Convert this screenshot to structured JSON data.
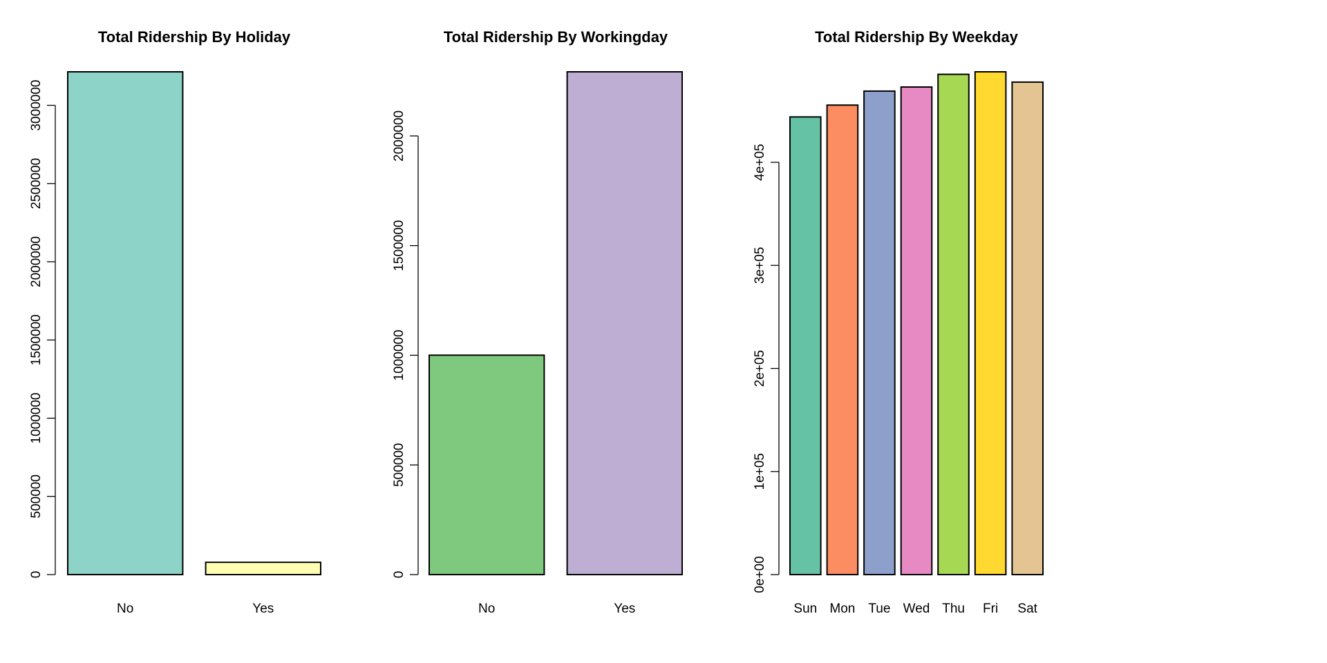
{
  "chart_data": [
    {
      "type": "bar",
      "title": "Total Ridership By Holiday",
      "xlabel": "",
      "ylabel": "",
      "categories": [
        "No",
        "Yes"
      ],
      "values": [
        3214244,
        78435
      ],
      "colors": [
        "#8DD3C7",
        "#FFFFB3"
      ],
      "ylim": [
        0,
        3214244
      ],
      "yticks": [
        0,
        500000,
        1000000,
        1500000,
        2000000,
        2500000,
        3000000
      ],
      "ytick_labels": [
        "0",
        "500000",
        "1000000",
        "1500000",
        "2000000",
        "2500000",
        "3000000"
      ],
      "grid": false,
      "legend": "none"
    },
    {
      "type": "bar",
      "title": "Total Ridership By Workingday",
      "xlabel": "",
      "ylabel": "",
      "categories": [
        "No",
        "Yes"
      ],
      "values": [
        1000269,
        2292410
      ],
      "colors": [
        "#7FC97F",
        "#BEAED4"
      ],
      "ylim": [
        0,
        2292410
      ],
      "yticks": [
        0,
        500000,
        1000000,
        1500000,
        2000000
      ],
      "ytick_labels": [
        "0",
        "500000",
        "1000000",
        "1500000",
        "2000000"
      ],
      "grid": false,
      "legend": "none"
    },
    {
      "type": "bar",
      "title": "Total Ridership By Weekday",
      "xlabel": "",
      "ylabel": "",
      "categories": [
        "Sun",
        "Mon",
        "Tue",
        "Wed",
        "Thu",
        "Fri",
        "Sat"
      ],
      "values": [
        444027,
        455503,
        469109,
        473048,
        485395,
        487790,
        477807
      ],
      "colors": [
        "#66C2A5",
        "#FC8D62",
        "#8DA0CB",
        "#E78AC3",
        "#A6D854",
        "#FFD92F",
        "#E5C494"
      ],
      "ylim": [
        0,
        487790
      ],
      "yticks": [
        0,
        100000,
        200000,
        300000,
        400000
      ],
      "ytick_labels": [
        "0e+00",
        "1e+05",
        "2e+05",
        "3e+05",
        "4e+05"
      ],
      "grid": false,
      "legend": "none"
    }
  ]
}
